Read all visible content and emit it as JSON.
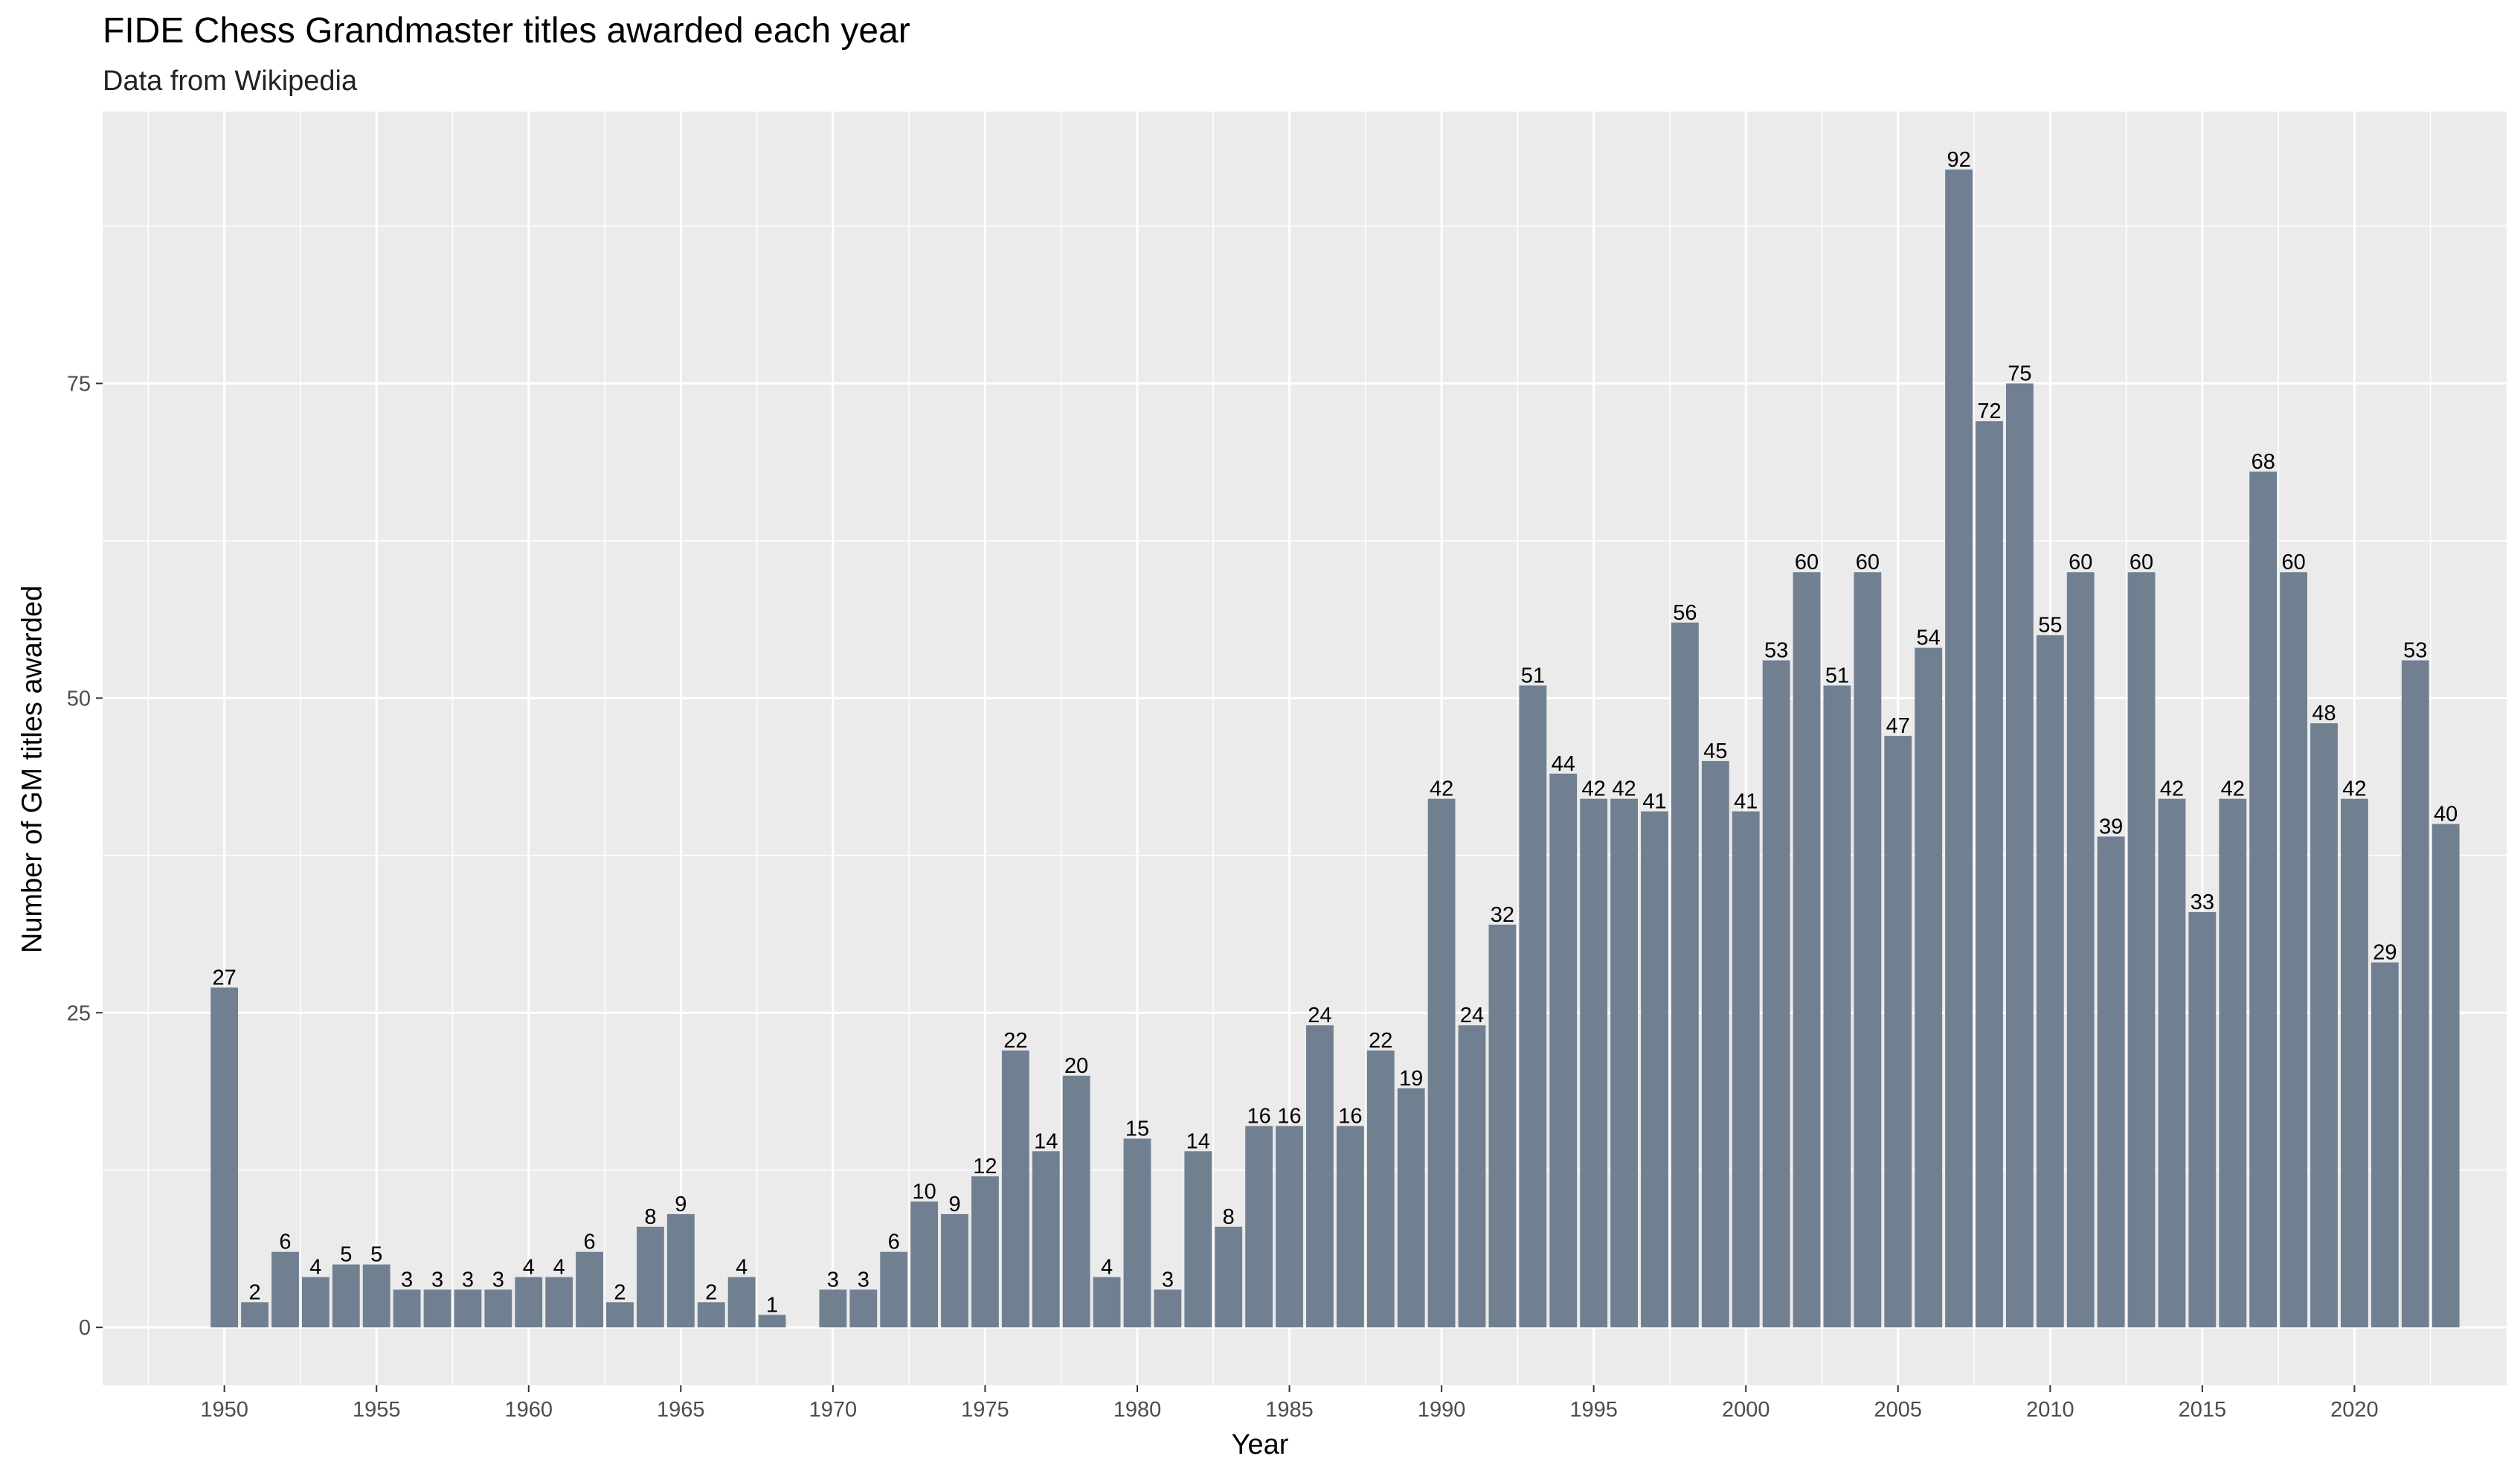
{
  "chart_data": {
    "type": "bar",
    "title": "FIDE Chess Grandmaster titles awarded each year",
    "subtitle": "Data from Wikipedia",
    "xlabel": "Year",
    "ylabel": "Number of GM titles awarded",
    "x": [
      1950,
      1951,
      1952,
      1953,
      1954,
      1955,
      1956,
      1957,
      1958,
      1959,
      1960,
      1961,
      1962,
      1963,
      1964,
      1965,
      1966,
      1967,
      1968,
      1970,
      1971,
      1972,
      1973,
      1974,
      1975,
      1976,
      1977,
      1978,
      1979,
      1980,
      1981,
      1982,
      1983,
      1984,
      1985,
      1986,
      1987,
      1988,
      1989,
      1990,
      1991,
      1992,
      1993,
      1994,
      1995,
      1996,
      1997,
      1998,
      1999,
      2000,
      2001,
      2002,
      2003,
      2004,
      2005,
      2006,
      2007,
      2008,
      2009,
      2010,
      2011,
      2012,
      2013,
      2014,
      2015,
      2016,
      2017,
      2018,
      2019,
      2020,
      2021,
      2022,
      2023
    ],
    "values": [
      27,
      2,
      6,
      4,
      5,
      5,
      3,
      3,
      3,
      3,
      4,
      4,
      6,
      2,
      8,
      9,
      2,
      4,
      1,
      3,
      3,
      6,
      10,
      9,
      12,
      22,
      14,
      20,
      4,
      15,
      3,
      14,
      8,
      16,
      16,
      24,
      16,
      22,
      19,
      42,
      24,
      32,
      51,
      44,
      42,
      42,
      41,
      56,
      45,
      41,
      53,
      60,
      51,
      60,
      47,
      54,
      92,
      72,
      75,
      55,
      60,
      39,
      60,
      42,
      33,
      42,
      68,
      60,
      48,
      42,
      29,
      53,
      40
    ],
    "x_ticks": [
      "1950",
      "1955",
      "1960",
      "1965",
      "1970",
      "1975",
      "1980",
      "1985",
      "1990",
      "1995",
      "2000",
      "2005",
      "2010",
      "2015",
      "2020"
    ],
    "y_ticks": [
      "0",
      "25",
      "50",
      "75"
    ],
    "xlim": [
      1946,
      2025
    ],
    "ylim": [
      -4.6,
      96.6
    ],
    "bar_color": "#708090",
    "panel_background": "#ebebeb",
    "grid": true,
    "show_value_labels": true
  }
}
